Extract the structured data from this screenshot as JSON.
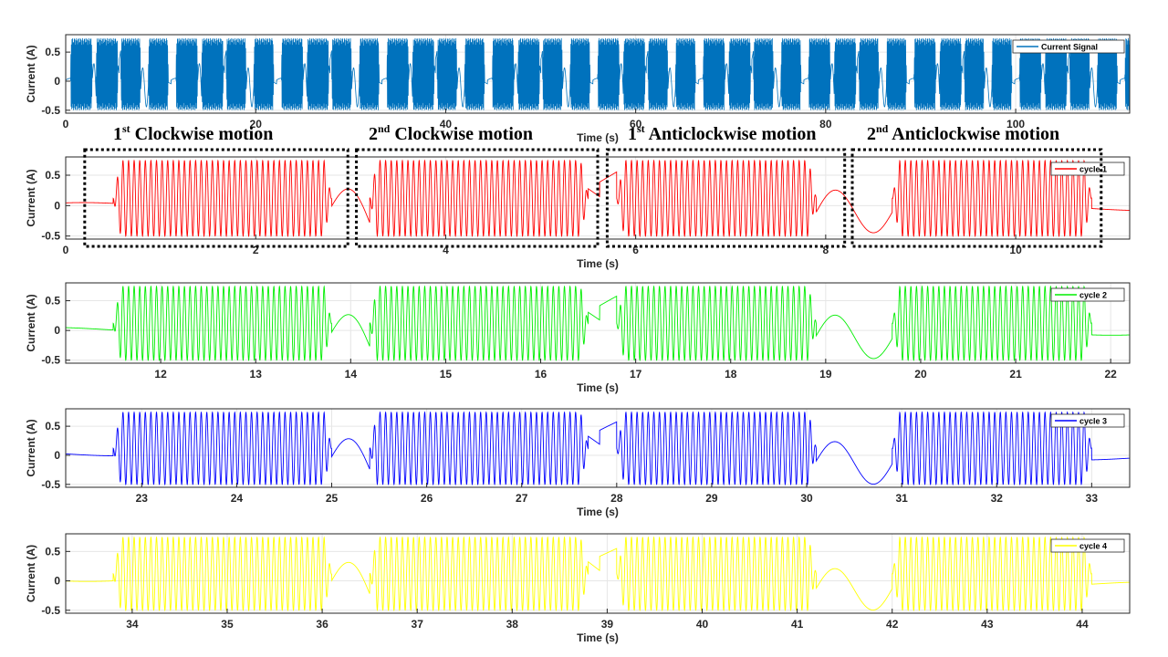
{
  "figure": {
    "motion_labels": [
      {
        "ordinal": "1",
        "suffix": "st",
        "text": "Clockwise motion"
      },
      {
        "ordinal": "2",
        "suffix": "nd",
        "text": "Clockwise motion"
      },
      {
        "ordinal": "1",
        "suffix": "st",
        "text": "Anticlockwise motion"
      },
      {
        "ordinal": "2",
        "suffix": "nd",
        "text": "Anticlockwise motion"
      }
    ]
  },
  "chart_data": [
    {
      "type": "line",
      "title": "",
      "xlabel": "Time (s)",
      "ylabel": "Current (A)",
      "xlim": [
        0,
        112
      ],
      "ylim": [
        -0.55,
        0.8
      ],
      "xticks": [
        "0",
        "20",
        "40",
        "60",
        "80",
        "100"
      ],
      "yticks": [
        "0.5",
        "0",
        "-0.5"
      ],
      "legend": "Current Signal",
      "color": "#0072BD",
      "segment_start": 0,
      "burst_pattern": "repeating 4 oscillation bursts per ~11 s cycle, amplitude -0.5 to 0.75 A",
      "grid": true
    },
    {
      "type": "line",
      "xlabel": "Time (s)",
      "ylabel": "Current (A)",
      "xlim": [
        0,
        11.2
      ],
      "ylim": [
        -0.55,
        0.8
      ],
      "xticks": [
        "0",
        "2",
        "4",
        "6",
        "8",
        "10"
      ],
      "yticks": [
        "0.5",
        "0",
        "-0.5"
      ],
      "legend": "cycle 1",
      "color": "#FF0000",
      "segment_start": 0,
      "grid": true
    },
    {
      "type": "line",
      "xlabel": "Time (s)",
      "ylabel": "Current (A)",
      "xlim": [
        11,
        22.2
      ],
      "ylim": [
        -0.55,
        0.8
      ],
      "xticks": [
        "12",
        "13",
        "14",
        "15",
        "16",
        "17",
        "18",
        "19",
        "20",
        "21",
        "22"
      ],
      "yticks": [
        "0.5",
        "0",
        "-0.5"
      ],
      "legend": "cycle 2",
      "color": "#00EE00",
      "segment_start": 11,
      "grid": true
    },
    {
      "type": "line",
      "xlabel": "Time (s)",
      "ylabel": "Current (A)",
      "xlim": [
        22.2,
        33.4
      ],
      "ylim": [
        -0.55,
        0.8
      ],
      "xticks": [
        "23",
        "24",
        "25",
        "26",
        "27",
        "28",
        "29",
        "30",
        "31",
        "32",
        "33"
      ],
      "yticks": [
        "0.5",
        "0",
        "-0.5"
      ],
      "legend": "cycle 3",
      "color": "#0000FF",
      "segment_start": 22.2,
      "grid": true
    },
    {
      "type": "line",
      "xlabel": "Time (s)",
      "ylabel": "Current (A)",
      "xlim": [
        33.3,
        44.5
      ],
      "ylim": [
        -0.55,
        0.8
      ],
      "xticks": [
        "34",
        "35",
        "36",
        "37",
        "38",
        "39",
        "40",
        "41",
        "42",
        "43",
        "44"
      ],
      "yticks": [
        "0.5",
        "0",
        "-0.5"
      ],
      "legend": "cycle 4",
      "color": "#FFFF00",
      "segment_start": 33.3,
      "grid": true
    }
  ]
}
